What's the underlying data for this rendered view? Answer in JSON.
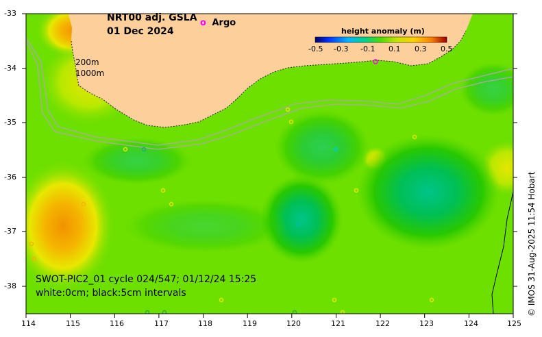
{
  "title": {
    "product": "NRT00 adj. GSLA",
    "date": "01 Dec 2024"
  },
  "legend": {
    "argo_symbol": "o",
    "argo_label": "Argo",
    "argo_color": "#ff00ff"
  },
  "colorbar": {
    "title": "height anomaly (m)",
    "ticks": [
      "-0.5",
      "-0.3",
      "-0.1",
      "0.1",
      "0.3",
      "0.5"
    ]
  },
  "contours": {
    "depth_1": "200m",
    "depth_2": "1000m"
  },
  "pass_info": {
    "line1": "SWOT-PIC2_01 cycle 024/547; 01/12/24 15:25",
    "line2": "white:0cm; black:5cm intervals"
  },
  "axes": {
    "lon_ticks": [
      "114",
      "115",
      "116",
      "117",
      "118",
      "119",
      "120",
      "121",
      "122",
      "123",
      "124",
      "125"
    ],
    "lat_ticks": [
      "-33",
      "-34",
      "-35",
      "-36",
      "-37",
      "-38"
    ]
  },
  "credit": "© IMOS 31-Aug-2025 11:54 Hobart",
  "colors": {
    "land": "#fdcf9b",
    "ocean_base": "#6ee000",
    "high_anomaly": "#f29a00",
    "low_anomaly": "#00b85a",
    "contour": "#aaaaaa"
  }
}
